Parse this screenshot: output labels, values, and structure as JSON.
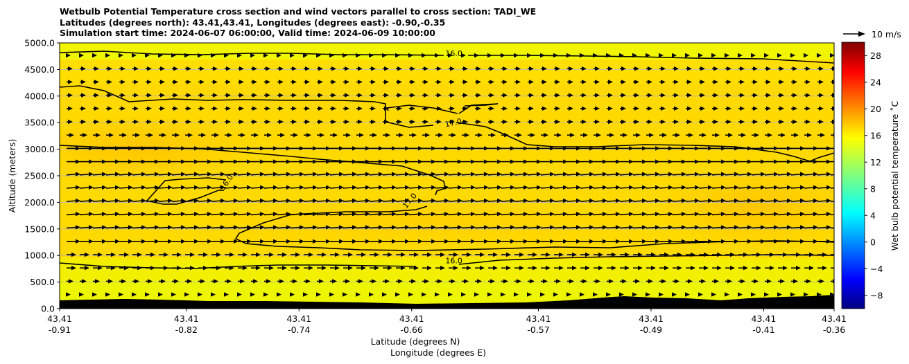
{
  "chart_data": {
    "type": "contour",
    "title": [
      "Wetbulb Potential Temperature cross section and wind vectors parallel to cross section: TADI_WE",
      "Latitudes (degrees north): 43.41,43.41, Longitudes (degrees east): -0.90,-0.35",
      "Simulation start time: 2024-06-07 06:00:00, Valid time: 2024-06-09 10:00:00"
    ],
    "ylabel": "Altitude (meters)",
    "xlabel": "Latitude (degrees N)",
    "xlabel2": "Longitude (degrees E)",
    "ylim": [
      0,
      5000
    ],
    "y_ticks": [
      "0.0",
      "500.0",
      "1000.0",
      "1500.0",
      "2000.0",
      "2500.0",
      "3000.0",
      "3500.0",
      "4000.0",
      "4500.0",
      "5000.0"
    ],
    "y_tick_values": [
      0,
      500,
      1000,
      1500,
      2000,
      2500,
      3000,
      3500,
      4000,
      4500,
      5000
    ],
    "x_ticks": [
      {
        "lat": "43.41",
        "lon": "-0.91"
      },
      {
        "lat": "43.41",
        "lon": "-0.82"
      },
      {
        "lat": "43.41",
        "lon": "-0.74"
      },
      {
        "lat": "43.41",
        "lon": "-0.66"
      },
      {
        "lat": "43.41",
        "lon": "-0.57"
      },
      {
        "lat": "43.41",
        "lon": "-0.49"
      },
      {
        "lat": "43.41",
        "lon": "-0.41"
      },
      {
        "lat": "43.41",
        "lon": "-0.36"
      }
    ],
    "x_tick_lon_values": [
      -0.91,
      -0.82,
      -0.74,
      -0.66,
      -0.57,
      -0.49,
      -0.41,
      -0.36
    ],
    "xlim_lon": [
      -0.91,
      -0.36
    ],
    "grid": "horizontal",
    "colorbar": {
      "label": "Wet bulb potential temperature $^\\circ$C",
      "label_text": "Wet bulb potential temperature ˚C",
      "colormap": "jet",
      "range": [
        -10,
        30
      ],
      "ticks": [
        "−8",
        "−4",
        "0",
        "4",
        "8",
        "12",
        "16",
        "20",
        "24",
        "28"
      ],
      "tick_values": [
        -8,
        -4,
        0,
        4,
        8,
        12,
        16,
        20,
        24,
        28
      ]
    },
    "contour_labels": [
      {
        "text": "16.0",
        "lon": -0.63,
        "alt": 4750
      },
      {
        "text": "17.0",
        "lon": -0.63,
        "alt": 3450
      },
      {
        "text": "16.0",
        "lon": -0.79,
        "alt": 2350
      },
      {
        "text": "17.0",
        "lon": -0.66,
        "alt": 2000
      },
      {
        "text": "16.0",
        "lon": -0.63,
        "alt": 850
      }
    ],
    "vector_key": {
      "label": "10 m/s",
      "speed": 10
    },
    "wind_vectors_note": "eastward wind parallel to cross section, strongest between 1000 and 3000 m",
    "terrain_color": "#000000",
    "contour_color": "#000000"
  }
}
